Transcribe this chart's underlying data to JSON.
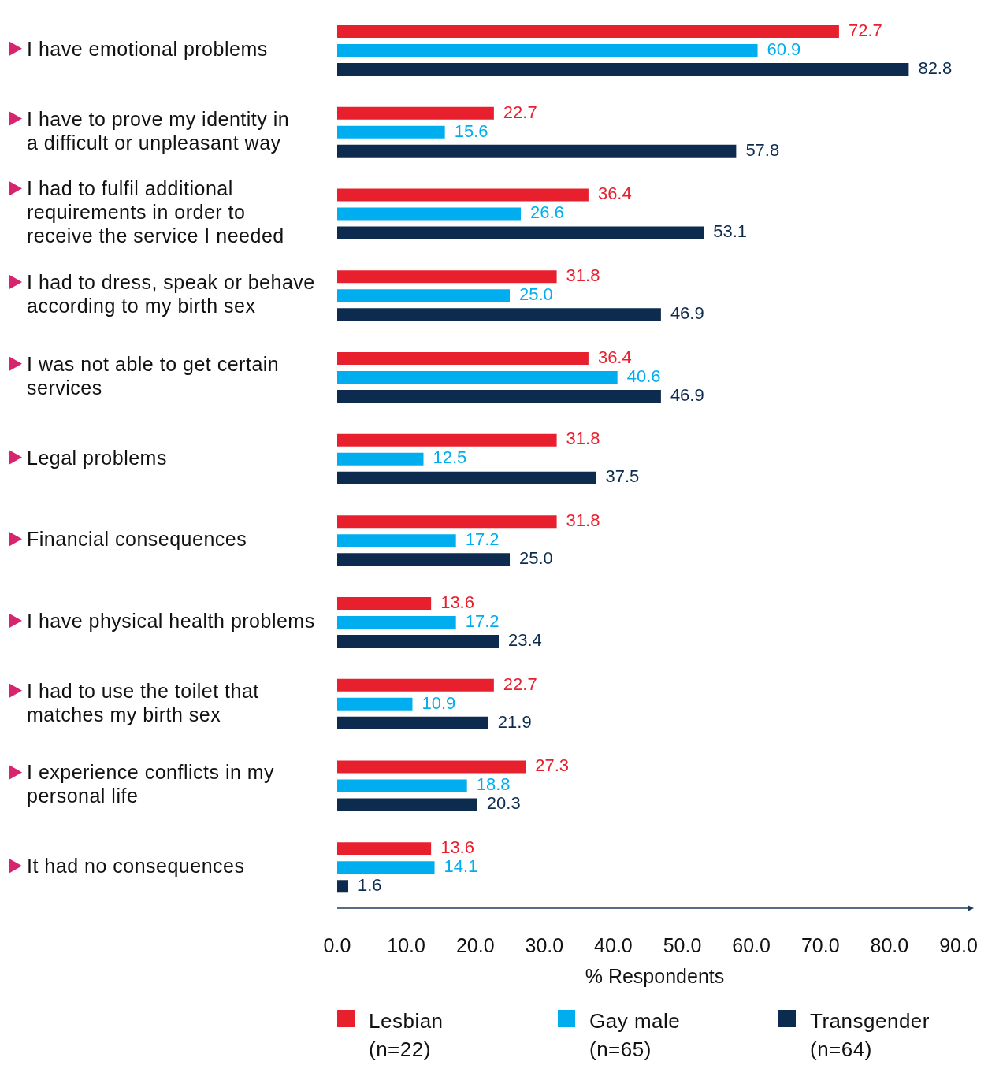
{
  "chart_data": {
    "type": "bar",
    "orientation": "horizontal",
    "xlabel": "% Respondents",
    "categories": [
      "I have emotional problems",
      "I have to prove my identity in a difficult or unpleasant way",
      "I had to fulfil additional requirements in order to receive the service I needed",
      "I had to dress, speak or behave according to my birth sex",
      "I was not able to get certain services",
      "Legal problems",
      "Financial consequences",
      "I have physical health problems",
      "I had to use the toilet that matches my birth sex",
      "I experience conflicts in my personal life",
      "It had no consequences"
    ],
    "series": [
      {
        "name": "Lesbian (n=22)",
        "color": "#e8202e",
        "values": [
          72.7,
          22.7,
          36.4,
          31.8,
          36.4,
          31.8,
          31.8,
          13.6,
          22.7,
          27.3,
          13.6
        ],
        "value_labels": [
          "72.7",
          "22.7",
          "36.4",
          "31.8",
          "36.4",
          "31.8",
          "31.8",
          "13.6",
          "22.7",
          "27.3",
          "13.6"
        ]
      },
      {
        "name": "Gay male (n=65)",
        "color": "#00aeef",
        "values": [
          60.9,
          15.6,
          26.6,
          25.0,
          40.6,
          12.5,
          17.2,
          17.2,
          10.9,
          18.8,
          14.1
        ],
        "value_labels": [
          "60.9",
          "15.6",
          "26.6",
          "25.0",
          "40.6",
          "12.5",
          "17.2",
          "17.2",
          "10.9",
          "18.8",
          "14.1"
        ]
      },
      {
        "name": "Transgender (n=64)",
        "color": "#0d2b4e",
        "values": [
          82.8,
          57.8,
          53.1,
          46.9,
          46.9,
          37.5,
          25.0,
          23.4,
          21.9,
          20.3,
          1.6
        ],
        "value_labels": [
          "82.8",
          "57.8",
          "53.1",
          "46.9",
          "46.9",
          "37.5",
          "25.0",
          "23.4",
          "21.9",
          "20.3",
          "1.6"
        ]
      }
    ],
    "xlim": [
      0,
      92
    ],
    "xticks": [
      {
        "value": 0,
        "label": "0.0"
      },
      {
        "value": 10,
        "label": "10.0"
      },
      {
        "value": 20,
        "label": "20.0"
      },
      {
        "value": 30,
        "label": "30.0"
      },
      {
        "value": 40,
        "label": "40.0"
      },
      {
        "value": 50,
        "label": "50.0"
      },
      {
        "value": 60,
        "label": "60.0"
      },
      {
        "value": 70,
        "label": "70.0"
      },
      {
        "value": 80,
        "label": "80.0"
      },
      {
        "value": 90,
        "label": "90.0"
      }
    ],
    "legend": "bottom"
  }
}
